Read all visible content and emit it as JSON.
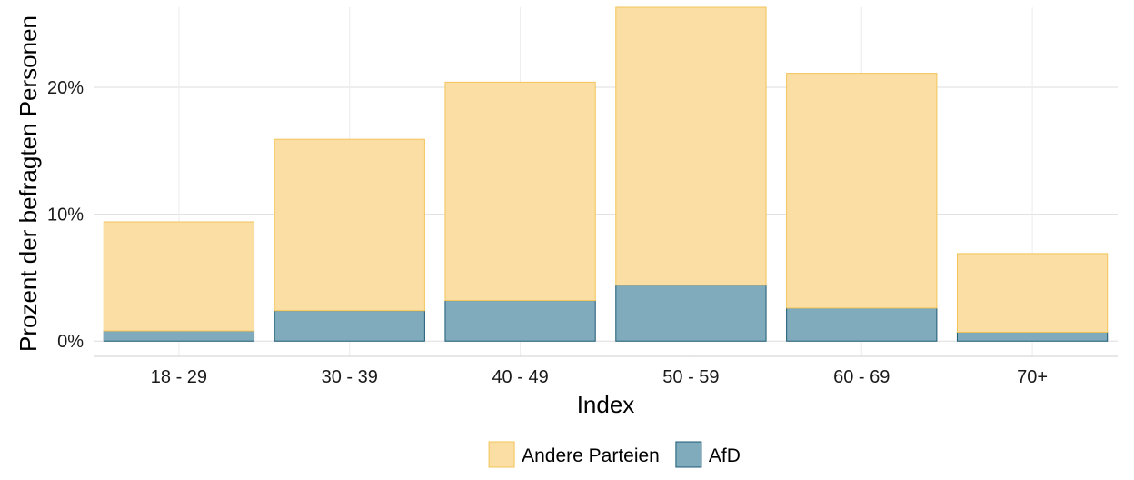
{
  "chart_data": {
    "type": "bar",
    "stacked": true,
    "title": "",
    "xlabel": "Index",
    "ylabel": "Prozent der befragten Personen",
    "categories": [
      "18 - 29",
      "30 - 39",
      "40 - 49",
      "50 - 59",
      "60 - 69",
      "70+"
    ],
    "series": [
      {
        "name": "AfD",
        "values": [
          0.8,
          2.4,
          3.2,
          4.4,
          2.6,
          0.7
        ],
        "color": "#7fabbd",
        "stroke": "#1c5a73"
      },
      {
        "name": "Andere Parteien",
        "values": [
          8.6,
          13.5,
          17.2,
          21.9,
          18.5,
          6.2
        ],
        "color": "#fadea3",
        "stroke": "#f2c45a"
      }
    ],
    "ylim": [
      -1.2,
      26.3
    ],
    "yticks": [
      0,
      10,
      20
    ],
    "ytick_labels": [
      "0%",
      "10%",
      "20%"
    ],
    "grid": true,
    "legend": {
      "position": "bottom",
      "items": [
        {
          "label": "Andere Parteien",
          "color": "#fadea3",
          "stroke": "#f2c45a"
        },
        {
          "label": "AfD",
          "color": "#7fabbd",
          "stroke": "#1c5a73"
        }
      ]
    }
  }
}
